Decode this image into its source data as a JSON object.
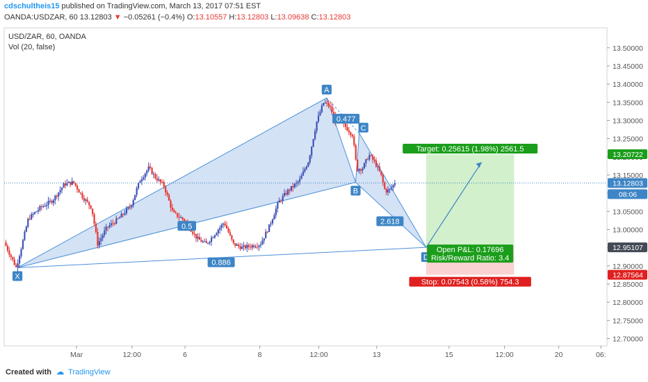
{
  "header": {
    "author": "cdschultheis15",
    "published": "published on TradingView.com, March 13, 2017 07:51 EST",
    "symbol_line": "OANDA:USDZAR, 60  13.12803",
    "change": "−0.05261 (−0.4%)",
    "ohlc_o_label": "O:",
    "ohlc_o": "13.10557",
    "ohlc_h_label": "H:",
    "ohlc_h": "13.12803",
    "ohlc_l_label": "L:",
    "ohlc_l": "13.09638",
    "ohlc_c_label": "C:",
    "ohlc_c": "13.12803"
  },
  "legend": {
    "title": "USD/ZAR, 60, OANDA",
    "vol": "Vol (20, false)"
  },
  "footer": {
    "created_with": "Created with",
    "brand": "TradingView"
  },
  "colors": {
    "up": "#3f51b5",
    "down": "#e53935",
    "pattern_fill": "#c5d8f2",
    "pattern_line": "#4a90d9",
    "target_fill": "#d2f0cc",
    "stop_fill": "#fbd2d2",
    "label_bg": "#3d85c6",
    "green": "#1b9e1b",
    "red": "#e02020"
  },
  "chart_data": {
    "type": "candlestick",
    "y_ticks": [
      "13.50000",
      "13.45000",
      "13.40000",
      "13.35000",
      "13.30000",
      "13.25000",
      "13.20000",
      "13.15000",
      "13.10000",
      "13.05000",
      "13.00000",
      "12.95000",
      "12.90000",
      "12.85000",
      "12.80000",
      "12.75000",
      "12.70000"
    ],
    "ylim": [
      12.68,
      13.555
    ],
    "x_ticks": [
      {
        "label": "Mar",
        "t": 0.12
      },
      {
        "label": "12:00",
        "t": 0.212
      },
      {
        "label": "6",
        "t": 0.3
      },
      {
        "label": "8",
        "t": 0.424
      },
      {
        "label": "12:00",
        "t": 0.522
      },
      {
        "label": "13",
        "t": 0.618
      },
      {
        "label": "15",
        "t": 0.738
      },
      {
        "label": "12:00",
        "t": 0.83
      },
      {
        "label": "20",
        "t": 0.92
      },
      {
        "label": "06:",
        "t": 0.99
      }
    ],
    "last_price": 13.12803,
    "last_price_label": "13.12803",
    "countdown": "08:06",
    "target_price_label": "13.20722",
    "entry_price_label": "12.95107",
    "stop_price_label": "12.87564",
    "xabcd": {
      "points": [
        {
          "name": "X",
          "t": 0.022,
          "price": 12.895
        },
        {
          "name": "A",
          "t": 0.535,
          "price": 13.362
        },
        {
          "name": "B",
          "t": 0.583,
          "price": 13.13
        },
        {
          "name": "C",
          "t": 0.589,
          "price": 13.265
        },
        {
          "name": "D",
          "t": 0.7,
          "price": 12.951
        }
      ],
      "labels": [
        "X",
        "A",
        "B",
        "C",
        "D"
      ],
      "ratios": [
        {
          "text": "0.5",
          "t": 0.303,
          "price": 13.01
        },
        {
          "text": "0.477",
          "t": 0.567,
          "price": 13.305
        },
        {
          "text": "0.886",
          "t": 0.36,
          "price": 12.91
        },
        {
          "text": "2.618",
          "t": 0.64,
          "price": 13.023
        }
      ]
    },
    "position": {
      "t_start": 0.7,
      "t_end": 0.846,
      "entry": 12.95107,
      "target": 13.20722,
      "stop": 12.87564,
      "target_text": "Target: 0.25615 (1.98%) 2561.5",
      "pnl_text": "Open P&L: 0.17696",
      "rr_text": "Risk/Reward Ratio: 3.4",
      "stop_text": "Stop: 0.07543 (0.58%) 754.3",
      "arrow_to": {
        "t": 0.792,
        "price": 13.185
      }
    },
    "path": [
      [
        0.0,
        12.965
      ],
      [
        0.02,
        12.895
      ],
      [
        0.04,
        13.03
      ],
      [
        0.06,
        13.06
      ],
      [
        0.08,
        13.08
      ],
      [
        0.1,
        13.125
      ],
      [
        0.115,
        13.13
      ],
      [
        0.13,
        13.09
      ],
      [
        0.145,
        13.06
      ],
      [
        0.155,
        12.96
      ],
      [
        0.17,
        13.005
      ],
      [
        0.19,
        13.03
      ],
      [
        0.21,
        13.065
      ],
      [
        0.225,
        13.135
      ],
      [
        0.24,
        13.17
      ],
      [
        0.25,
        13.145
      ],
      [
        0.265,
        13.12
      ],
      [
        0.28,
        13.045
      ],
      [
        0.3,
        13.025
      ],
      [
        0.32,
        12.975
      ],
      [
        0.335,
        12.96
      ],
      [
        0.35,
        12.99
      ],
      [
        0.365,
        13.02
      ],
      [
        0.38,
        12.96
      ],
      [
        0.395,
        12.95
      ],
      [
        0.41,
        12.955
      ],
      [
        0.425,
        12.96
      ],
      [
        0.44,
        13.01
      ],
      [
        0.455,
        13.075
      ],
      [
        0.47,
        13.105
      ],
      [
        0.49,
        13.135
      ],
      [
        0.505,
        13.19
      ],
      [
        0.518,
        13.295
      ],
      [
        0.53,
        13.35
      ],
      [
        0.54,
        13.34
      ],
      [
        0.55,
        13.3
      ],
      [
        0.565,
        13.285
      ],
      [
        0.578,
        13.26
      ],
      [
        0.585,
        13.165
      ],
      [
        0.595,
        13.17
      ],
      [
        0.605,
        13.205
      ],
      [
        0.615,
        13.185
      ],
      [
        0.625,
        13.15
      ],
      [
        0.632,
        13.105
      ],
      [
        0.64,
        13.11
      ],
      [
        0.648,
        13.128
      ]
    ]
  }
}
